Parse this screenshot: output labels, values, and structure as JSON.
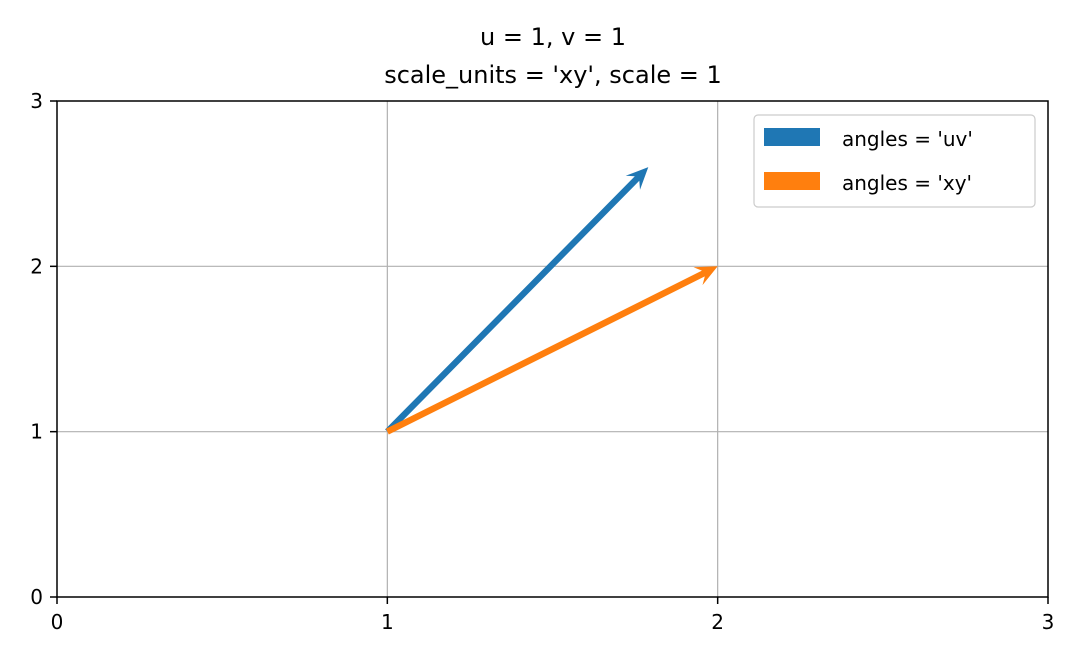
{
  "chart_data": {
    "type": "quiver",
    "title": "u = 1, v = 1",
    "subtitle": "scale_units = 'xy', scale = 1",
    "xlabel": "",
    "ylabel": "",
    "xlim": [
      0,
      3
    ],
    "ylim": [
      0,
      3
    ],
    "xticks": [
      "0",
      "1",
      "2",
      "3"
    ],
    "yticks": [
      "0",
      "1",
      "2",
      "3"
    ],
    "grid": true,
    "legend_position": "top-right",
    "series": [
      {
        "name": "angles = 'uv'",
        "color": "#1f77b4",
        "x": 1,
        "y": 1,
        "end_x": 1.79,
        "end_y": 2.6
      },
      {
        "name": "angles = 'xy'",
        "color": "#ff7f0e",
        "x": 1,
        "y": 1,
        "end_x": 2,
        "end_y": 2
      }
    ]
  }
}
